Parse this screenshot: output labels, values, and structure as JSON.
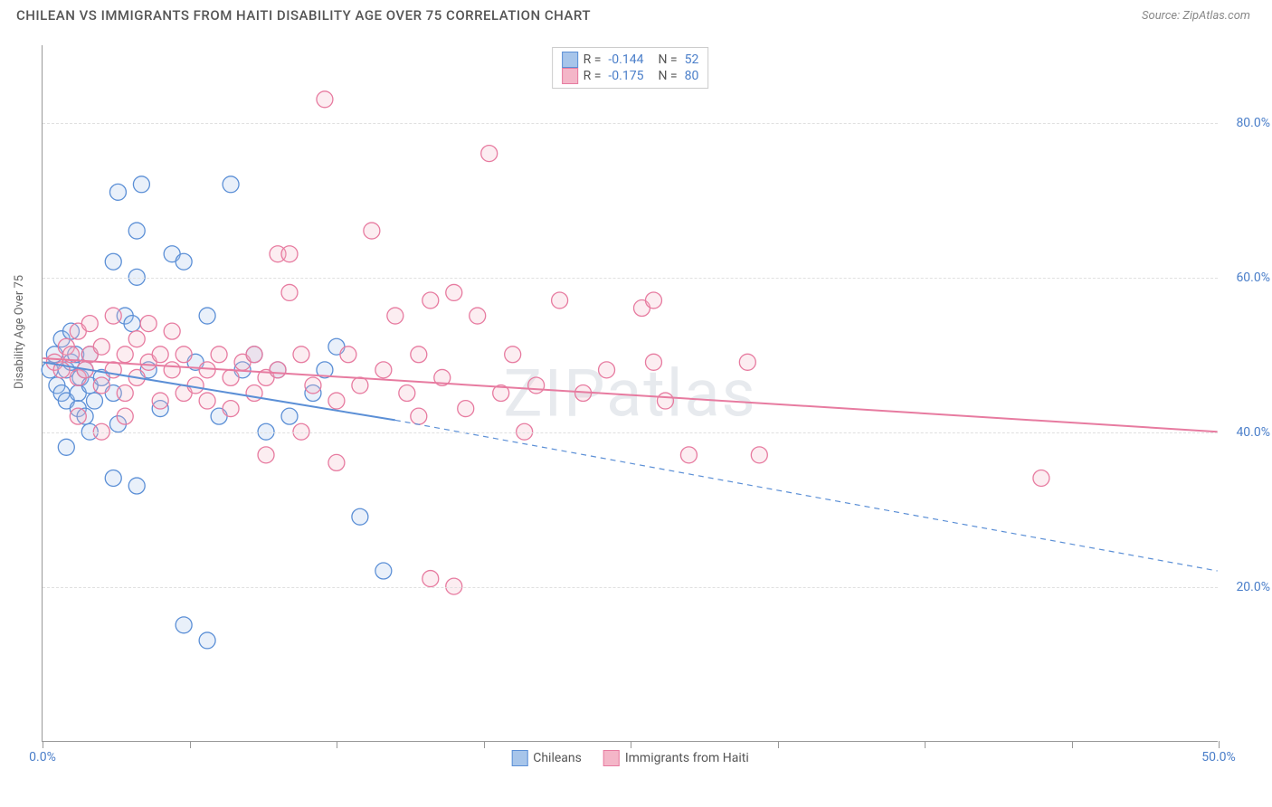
{
  "title": "CHILEAN VS IMMIGRANTS FROM HAITI DISABILITY AGE OVER 75 CORRELATION CHART",
  "source": "Source: ZipAtlas.com",
  "watermark": "ZIPatlas",
  "ylabel": "Disability Age Over 75",
  "chart": {
    "type": "scatter",
    "background_color": "#ffffff",
    "grid_color": "#e0e0e0",
    "axis_color": "#999999",
    "label_color": "#4a7ec9",
    "xlim": [
      0,
      50
    ],
    "ylim": [
      0,
      90
    ],
    "xtick_positions": [
      0,
      6.25,
      12.5,
      18.75,
      25,
      31.25,
      37.5,
      43.75,
      50
    ],
    "xtick_labels": {
      "0": "0.0%",
      "50": "50.0%"
    },
    "ytick_positions": [
      20,
      40,
      60,
      80
    ],
    "ytick_labels": {
      "20": "20.0%",
      "40": "40.0%",
      "60": "60.0%",
      "80": "80.0%"
    },
    "marker_radius": 9,
    "marker_stroke_width": 1.3,
    "marker_fill_opacity": 0.25,
    "line_width": 2,
    "dash_pattern": "6 5",
    "series": [
      {
        "name": "Chileans",
        "color_stroke": "#5b8fd6",
        "color_fill": "#a7c5ea",
        "R": "-0.144",
        "N": "52",
        "trend_solid": {
          "x1": 0,
          "y1": 49,
          "x2": 15,
          "y2": 41.5
        },
        "trend_dash": {
          "x1": 15,
          "y1": 41.5,
          "x2": 50,
          "y2": 22
        },
        "points": [
          [
            0.3,
            48
          ],
          [
            0.5,
            50
          ],
          [
            0.6,
            46
          ],
          [
            0.8,
            52
          ],
          [
            0.8,
            45
          ],
          [
            1.0,
            48
          ],
          [
            1.0,
            44
          ],
          [
            1.2,
            53
          ],
          [
            1.2,
            49
          ],
          [
            1.4,
            50
          ],
          [
            1.5,
            45
          ],
          [
            1.5,
            43
          ],
          [
            1.6,
            47
          ],
          [
            1.8,
            48
          ],
          [
            1.8,
            42
          ],
          [
            2.0,
            46
          ],
          [
            2.0,
            50
          ],
          [
            2.2,
            44
          ],
          [
            2.5,
            47
          ],
          [
            3.0,
            45
          ],
          [
            3.0,
            62
          ],
          [
            3.2,
            71
          ],
          [
            3.5,
            55
          ],
          [
            3.8,
            54
          ],
          [
            4.0,
            66
          ],
          [
            4.0,
            60
          ],
          [
            4.2,
            72
          ],
          [
            4.5,
            48
          ],
          [
            5.0,
            43
          ],
          [
            5.5,
            63
          ],
          [
            6.0,
            62
          ],
          [
            6.5,
            49
          ],
          [
            7.0,
            55
          ],
          [
            7.5,
            42
          ],
          [
            8.0,
            72
          ],
          [
            8.5,
            48
          ],
          [
            9.0,
            50
          ],
          [
            9.5,
            40
          ],
          [
            10.0,
            48
          ],
          [
            10.5,
            42
          ],
          [
            11.5,
            45
          ],
          [
            12.0,
            48
          ],
          [
            12.5,
            51
          ],
          [
            1.0,
            38
          ],
          [
            2.0,
            40
          ],
          [
            3.0,
            34
          ],
          [
            3.2,
            41
          ],
          [
            4.0,
            33
          ],
          [
            6.0,
            15
          ],
          [
            7.0,
            13
          ],
          [
            13.5,
            29
          ],
          [
            14.5,
            22
          ]
        ]
      },
      {
        "name": "Immigrants from Haiti",
        "color_stroke": "#e77ba0",
        "color_fill": "#f4b6c8",
        "R": "-0.175",
        "N": "80",
        "trend_solid": {
          "x1": 0,
          "y1": 49.5,
          "x2": 50,
          "y2": 40
        },
        "trend_dash": null,
        "points": [
          [
            0.5,
            49
          ],
          [
            0.8,
            48
          ],
          [
            1.0,
            51
          ],
          [
            1.2,
            50
          ],
          [
            1.5,
            47
          ],
          [
            1.5,
            53
          ],
          [
            1.8,
            48
          ],
          [
            2.0,
            50
          ],
          [
            2.0,
            54
          ],
          [
            2.5,
            46
          ],
          [
            2.5,
            51
          ],
          [
            3.0,
            55
          ],
          [
            3.0,
            48
          ],
          [
            3.5,
            50
          ],
          [
            3.5,
            45
          ],
          [
            4.0,
            52
          ],
          [
            4.0,
            47
          ],
          [
            4.5,
            49
          ],
          [
            4.5,
            54
          ],
          [
            5.0,
            50
          ],
          [
            5.0,
            44
          ],
          [
            5.5,
            48
          ],
          [
            5.5,
            53
          ],
          [
            6.0,
            45
          ],
          [
            6.0,
            50
          ],
          [
            6.5,
            46
          ],
          [
            7.0,
            48
          ],
          [
            7.0,
            44
          ],
          [
            7.5,
            50
          ],
          [
            8.0,
            47
          ],
          [
            8.0,
            43
          ],
          [
            8.5,
            49
          ],
          [
            9.0,
            50
          ],
          [
            9.0,
            45
          ],
          [
            9.5,
            47
          ],
          [
            10.0,
            63
          ],
          [
            10.0,
            48
          ],
          [
            10.5,
            63
          ],
          [
            10.5,
            58
          ],
          [
            11.0,
            50
          ],
          [
            11.5,
            46
          ],
          [
            12.0,
            83
          ],
          [
            12.5,
            44
          ],
          [
            13.0,
            50
          ],
          [
            13.5,
            46
          ],
          [
            14.0,
            66
          ],
          [
            14.5,
            48
          ],
          [
            15.0,
            55
          ],
          [
            15.5,
            45
          ],
          [
            16.0,
            50
          ],
          [
            16.0,
            42
          ],
          [
            16.5,
            57
          ],
          [
            17.0,
            47
          ],
          [
            17.5,
            58
          ],
          [
            18.0,
            43
          ],
          [
            18.5,
            55
          ],
          [
            19.0,
            76
          ],
          [
            19.5,
            45
          ],
          [
            20.0,
            50
          ],
          [
            20.5,
            40
          ],
          [
            21.0,
            46
          ],
          [
            22.0,
            57
          ],
          [
            23.0,
            45
          ],
          [
            24.0,
            48
          ],
          [
            25.5,
            56
          ],
          [
            26.0,
            57
          ],
          [
            26.0,
            49
          ],
          [
            26.5,
            44
          ],
          [
            27.5,
            37
          ],
          [
            30.0,
            49
          ],
          [
            30.5,
            37
          ],
          [
            42.5,
            34
          ],
          [
            1.5,
            42
          ],
          [
            2.5,
            40
          ],
          [
            3.5,
            42
          ],
          [
            9.5,
            37
          ],
          [
            12.5,
            36
          ],
          [
            16.5,
            21
          ],
          [
            17.5,
            20
          ],
          [
            11.0,
            40
          ]
        ]
      }
    ]
  },
  "bottom_legend": [
    {
      "label": "Chileans",
      "fill": "#a7c5ea",
      "stroke": "#5b8fd6"
    },
    {
      "label": "Immigrants from Haiti",
      "fill": "#f4b6c8",
      "stroke": "#e77ba0"
    }
  ]
}
